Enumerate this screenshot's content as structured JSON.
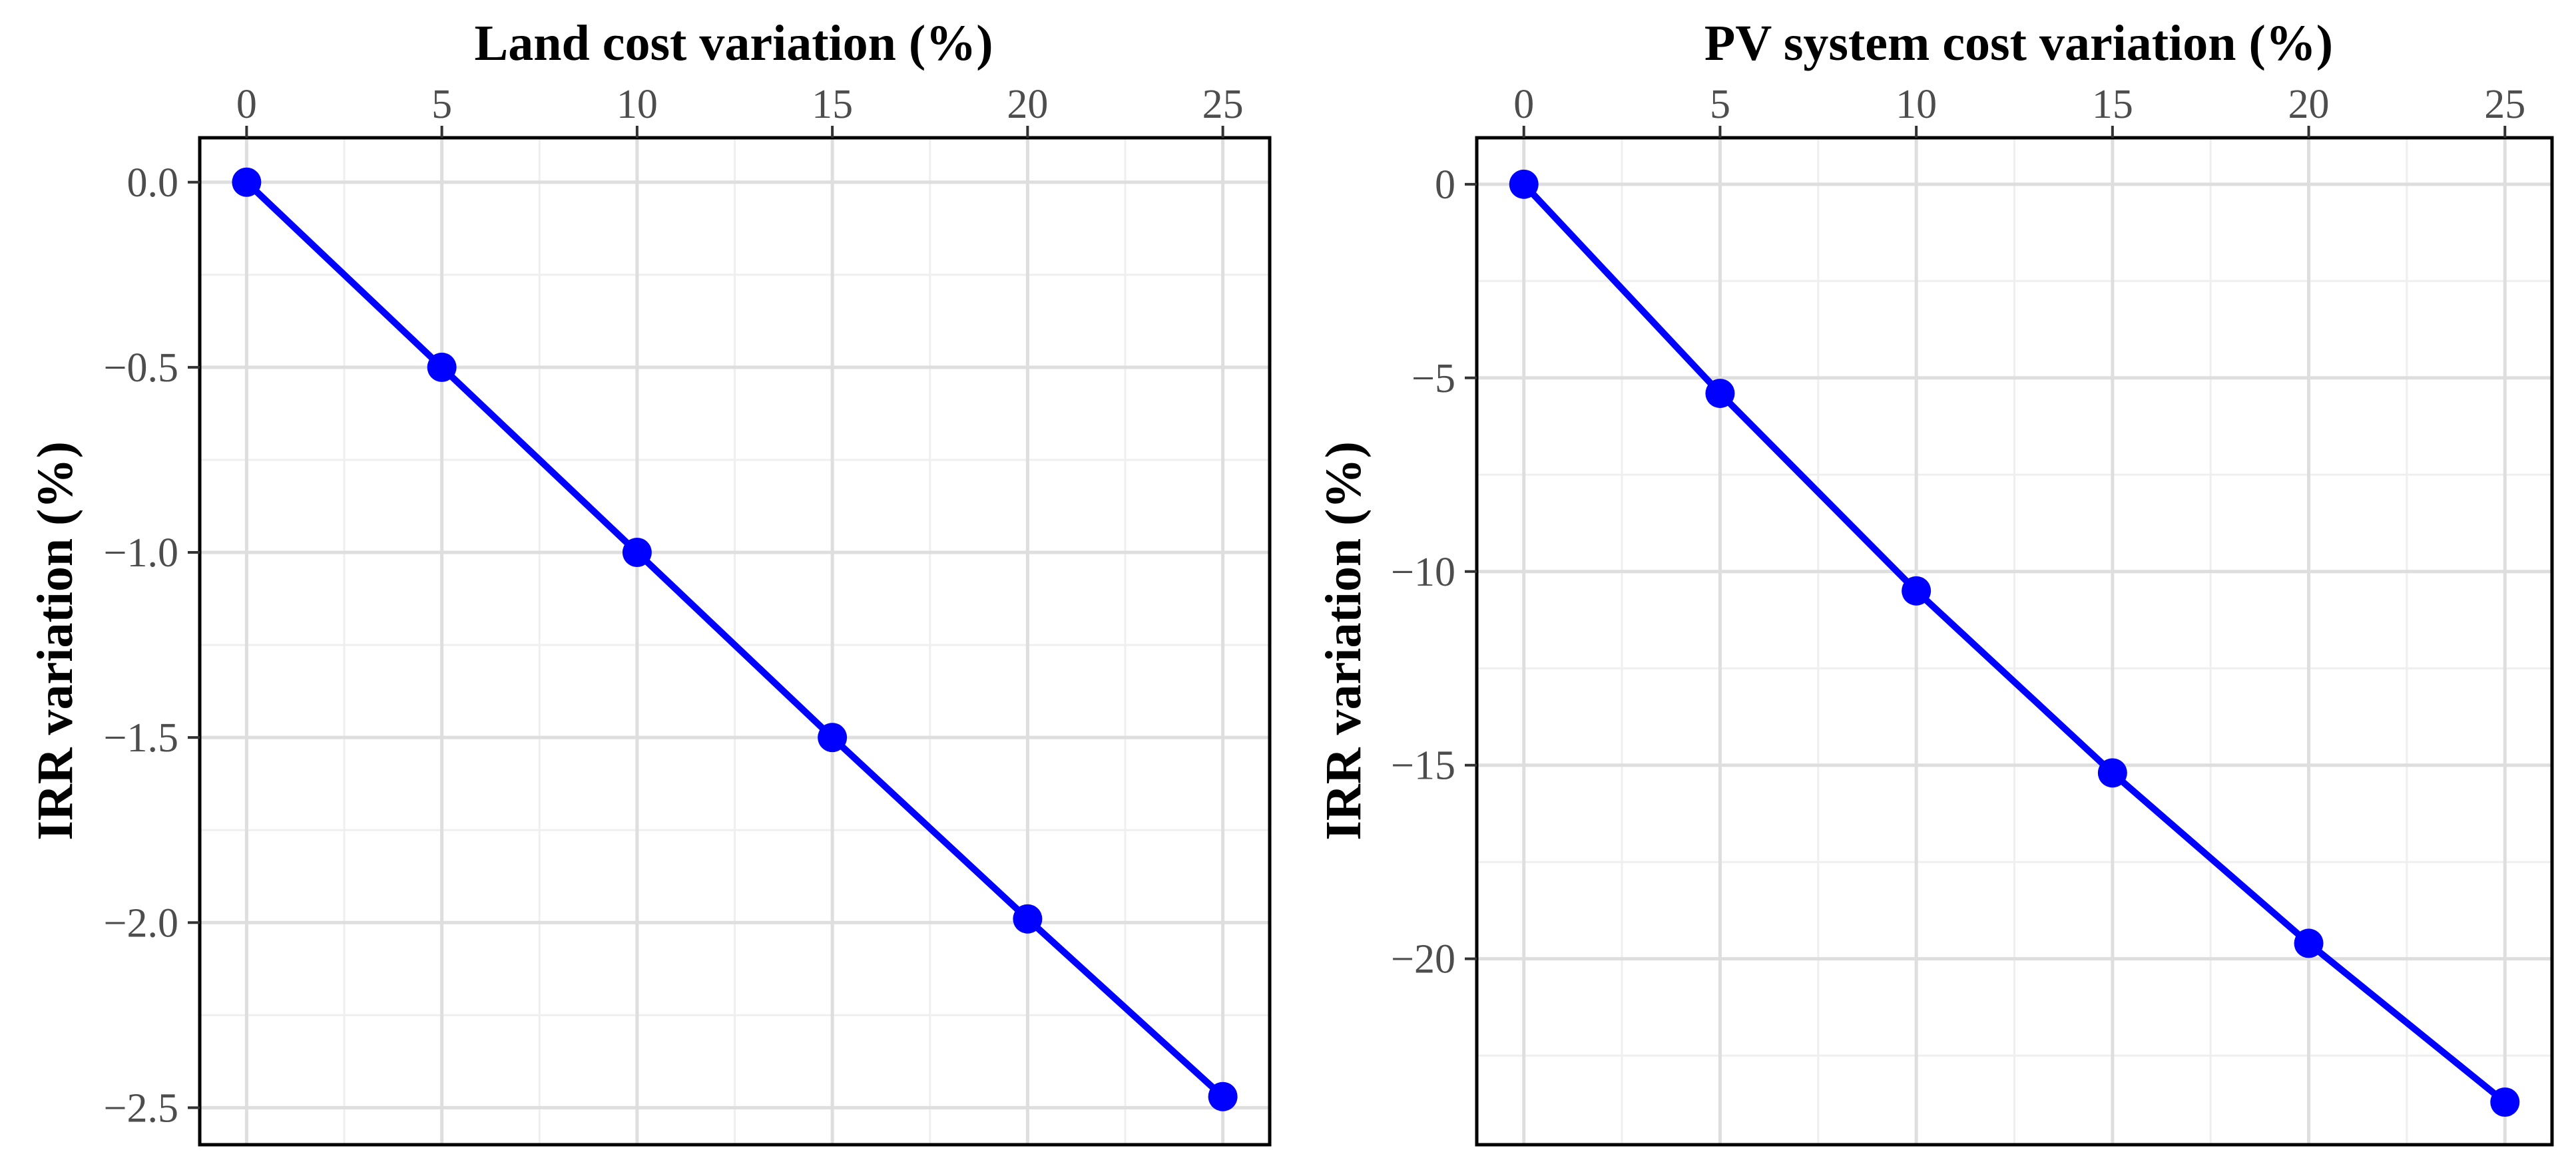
{
  "chart_data": [
    {
      "type": "line",
      "title": "Land cost variation (%)",
      "xlabel": "Land cost variation (%)",
      "ylabel": "IRR variation (%)",
      "x": [
        0,
        5,
        10,
        15,
        20,
        25
      ],
      "series": [
        {
          "name": "IRR variation",
          "values": [
            0.0,
            -0.5,
            -1.0,
            -1.5,
            -1.99,
            -2.47
          ]
        }
      ],
      "xlim": [
        -1.2,
        26.2
      ],
      "ylim": [
        -2.6,
        0.12
      ],
      "xticks": [
        0,
        5,
        10,
        15,
        20,
        25
      ],
      "xtick_labels": [
        "0",
        "5",
        "10",
        "15",
        "20",
        "25"
      ],
      "yticks": [
        0.0,
        -0.5,
        -1.0,
        -1.5,
        -2.0,
        -2.5
      ],
      "ytick_labels": [
        "0.0",
        "−0.5",
        "−1.0",
        "−1.5",
        "−2.0",
        "−2.5"
      ],
      "x_axis_position": "top",
      "grid": true,
      "line_color": "#0000ff",
      "marker_color": "#0000ff"
    },
    {
      "type": "line",
      "title": "PV system cost variation (%)",
      "xlabel": "PV system cost variation (%)",
      "ylabel": "IRR variation (%)",
      "x": [
        0,
        5,
        10,
        15,
        20,
        25
      ],
      "series": [
        {
          "name": "IRR variation",
          "values": [
            0.0,
            -5.4,
            -10.5,
            -15.2,
            -19.6,
            -23.7
          ]
        }
      ],
      "xlim": [
        -1.2,
        26.2
      ],
      "ylim": [
        -24.8,
        1.2
      ],
      "xticks": [
        0,
        5,
        10,
        15,
        20,
        25
      ],
      "xtick_labels": [
        "0",
        "5",
        "10",
        "15",
        "20",
        "25"
      ],
      "yticks": [
        0,
        -5,
        -10,
        -15,
        -20
      ],
      "ytick_labels": [
        "0",
        "−5",
        "−10",
        "−15",
        "−20"
      ],
      "x_axis_position": "top",
      "grid": true,
      "line_color": "#0000ff",
      "marker_color": "#0000ff"
    }
  ]
}
